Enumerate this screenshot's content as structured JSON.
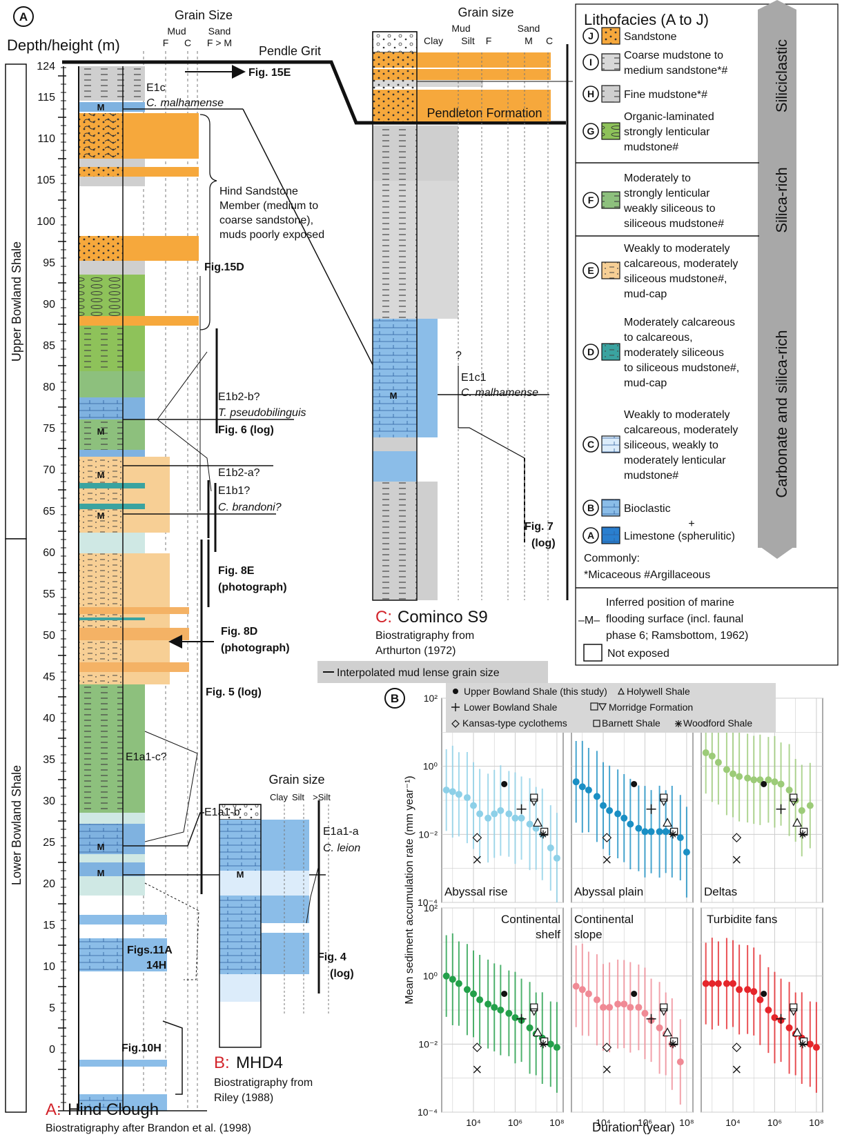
{
  "panel_a": {
    "letter": "A",
    "depth_label": "Depth/height (m)",
    "grain_size_label": "Grain Size",
    "grain_top": [
      "Mud",
      "Sand"
    ],
    "grain_bottom": [
      "F",
      "C",
      "F > M"
    ],
    "depth_ticks": [
      "124",
      "115",
      "110",
      "105",
      "100",
      "95",
      "90",
      "85",
      "80",
      "75",
      "70",
      "65",
      "60",
      "55",
      "50",
      "45",
      "40",
      "35",
      "30",
      "25",
      "20",
      "15",
      "10",
      "5",
      "0"
    ],
    "upper_unit": "Upper Bowland Shale",
    "lower_unit": "Lower Bowland Shale",
    "pendle_grit": "Pendle Grit",
    "fig_15e": "Fig. 15E",
    "e1c": "E1c",
    "c_malhamense": "C. malhamense",
    "hind_sandstone": [
      "Hind Sandstone",
      "Member (medium to",
      "coarse sandstone),",
      "muds poorly exposed"
    ],
    "fig_15d": "Fig.15D",
    "e1b2b": "E1b2-b?",
    "t_pseudo": "T. pseudobilinguis",
    "fig6": "Fig. 6 (log)",
    "e1b2a": "E1b2-a?",
    "e1b1": "E1b1?",
    "c_brandoni": "C. brandoni?",
    "fig8e": [
      "Fig. 8E",
      "(photograph)"
    ],
    "fig8d": [
      "Fig. 8D",
      "(photograph)"
    ],
    "fig5": "Fig. 5 (log)",
    "e1a1c": "E1a1-c?",
    "e1a1b": "E1a1-b",
    "figs11a": [
      "Figs.11A",
      "14H"
    ],
    "fig10h": "Fig.10H",
    "site_letter": "A:",
    "site_name": "Hind Clough",
    "biostrat": "Biostratigraphy after Brandon et al. (1998)",
    "m_mark": "M"
  },
  "panel_b": {
    "grain_size_label": "Grain size",
    "grain_cols": [
      "Clay",
      "Silt",
      ">Silt"
    ],
    "e1a1a": "E1a1-a",
    "c_leion": "C. leion",
    "fig4": [
      "Fig. 4",
      "(log)"
    ],
    "site_letter": "B:",
    "site_name": "MHD4",
    "biostrat": [
      "Biostratigraphy from",
      "Riley (1988)"
    ]
  },
  "panel_c": {
    "grain_size_label": "Grain size",
    "grain_top": [
      "Mud",
      "Sand"
    ],
    "grain_bottom": [
      "Clay",
      "Silt",
      "F",
      "M",
      "C"
    ],
    "pendleton": "Pendleton Formation",
    "e1c1": "E1c1",
    "c_malhamense": "C. malhamense",
    "question": "?",
    "fig7": [
      "Fig. 7",
      "(log)"
    ],
    "site_letter": "C:",
    "site_name": "Cominco S9",
    "biostrat": [
      "Biostratigraphy from",
      "Arthurton (1972)"
    ],
    "interp_note": "Interpolated mud lense grain size"
  },
  "legend": {
    "title": "Lithofacies (A to J)",
    "items": [
      {
        "letter": "J",
        "lines": [
          "Sandstone"
        ]
      },
      {
        "letter": "I",
        "lines": [
          "Coarse mudstone to",
          "medium sandstone*#"
        ]
      },
      {
        "letter": "H",
        "lines": [
          "Fine mudstone*#"
        ]
      },
      {
        "letter": "G",
        "lines": [
          "Organic-laminated",
          "strongly lenticular",
          "mudstone#"
        ]
      },
      {
        "letter": "F",
        "lines": [
          "Moderately to",
          "strongly lenticular",
          "weakly siliceous to",
          "siliceous mudstone#"
        ]
      },
      {
        "letter": "E",
        "lines": [
          "Weakly to moderately",
          "calcareous, moderately",
          "siliceous mudstone#,",
          "mud-cap"
        ]
      },
      {
        "letter": "D",
        "lines": [
          "Moderately calcareous",
          "to calcareous,",
          "moderately siliceous",
          "to siliceous mudstone#,",
          "mud-cap"
        ]
      },
      {
        "letter": "C",
        "lines": [
          "Weakly to moderately",
          "calcareous, moderately",
          "siliceous, weakly to",
          "moderately lenticular",
          "mudstone#"
        ]
      },
      {
        "letter": "B",
        "lines": [
          "Bioclastic"
        ]
      },
      {
        "letter": "A",
        "lines": [
          "Limestone (spherulitic)"
        ]
      }
    ],
    "plus": "+",
    "commonly": "Commonly:",
    "commonly_note": "*Micaceous #Argillaceous",
    "flood_lines": [
      "Inferred position of marine",
      "flooding surface (incl. faunal",
      "phase 6; Ramsbottom, 1962)"
    ],
    "flood_symbol": "–M–",
    "not_exposed": "Not exposed",
    "arrow_labels": [
      "Siliciclastic",
      "Silica-rich",
      "Carbonate and silica-rich"
    ]
  },
  "chart_b": {
    "letter": "B",
    "legend": [
      "Upper Bowland Shale (this study)",
      "Holywell Shale",
      "Lower Bowland Shale",
      "Morridge Formation",
      "Kansas-type cyclothems",
      "Barnett Shale",
      "Woodford Shale"
    ],
    "ylabel": "Mean sediment accumulation rate (mm year⁻¹)",
    "xlabel": "Duration (year)",
    "y_ticks": [
      "10²",
      "10⁰",
      "10⁻²",
      "10⁻⁴"
    ],
    "x_ticks": [
      "10⁴",
      "10⁶",
      "10⁸"
    ]
  },
  "chart_data": {
    "type": "scatter",
    "x_scale": "log",
    "y_scale": "log",
    "xlim": [
      300,
      200000000
    ],
    "ylim": [
      0.0001,
      100
    ],
    "grid": true,
    "ylabel": "Mean sediment accumulation rate (mm year⁻¹)",
    "xlabel": "Duration (year)",
    "reference_points": [
      {
        "name": "Upper Bowland Shale (this study)",
        "x": 300000,
        "y": 0.3
      },
      {
        "name": "Lower Bowland Shale",
        "x": 2000000,
        "y": 0.055
      },
      {
        "name": "Kansas-type cyclothems (diamond)",
        "x": 15000,
        "y": 0.008
      },
      {
        "name": "Kansas-type cyclothems (cross)",
        "x": 15000,
        "y": 0.0018
      },
      {
        "name": "Morridge Formation (boxed cross)",
        "x": 8000000,
        "y": 0.12
      },
      {
        "name": "Morridge Formation (triangle down)",
        "x": 8000000,
        "y": 0.09
      },
      {
        "name": "Holywell Shale",
        "x": 12000000,
        "y": 0.022
      },
      {
        "name": "Barnett Shale",
        "x": 25000000,
        "y": 0.012
      },
      {
        "name": "Woodford Shale",
        "x": 22000000,
        "y": 0.01
      }
    ],
    "panels": [
      {
        "name": "Abyssal rise",
        "color": "#8dd0e8",
        "x": [
          500,
          1000,
          2000,
          5000,
          10000,
          20000,
          50000,
          100000,
          200000,
          500000,
          1000000,
          2000000,
          5000000,
          10000000,
          20000000,
          50000000,
          100000000
        ],
        "y": [
          0.2,
          0.18,
          0.15,
          0.12,
          0.07,
          0.04,
          0.03,
          0.04,
          0.05,
          0.04,
          0.03,
          0.03,
          0.02,
          0.015,
          0.01,
          0.004,
          0.002
        ]
      },
      {
        "name": "Abyssal plain",
        "color": "#1a8fc4",
        "x": [
          500,
          1000,
          2000,
          5000,
          10000,
          20000,
          50000,
          100000,
          200000,
          500000,
          1000000,
          2000000,
          5000000,
          10000000,
          20000000,
          50000000,
          100000000
        ],
        "y": [
          0.35,
          0.25,
          0.2,
          0.13,
          0.07,
          0.05,
          0.04,
          0.03,
          0.02,
          0.015,
          0.012,
          0.012,
          0.012,
          0.012,
          0.012,
          0.008,
          0.003
        ]
      },
      {
        "name": "Deltas",
        "color": "#9ccb78",
        "x": [
          500,
          1000,
          2000,
          5000,
          10000,
          20000,
          50000,
          100000,
          200000,
          500000,
          1000000,
          2000000,
          5000000,
          10000000,
          20000000,
          50000000
        ],
        "y": [
          2.5,
          2.0,
          1.3,
          0.8,
          0.6,
          0.5,
          0.45,
          0.4,
          0.4,
          0.4,
          0.35,
          0.3,
          0.2,
          0.1,
          0.05,
          0.07
        ]
      },
      {
        "name": "Continental shelf",
        "color": "#23a04a",
        "x": [
          500,
          1000,
          2000,
          5000,
          10000,
          20000,
          50000,
          100000,
          200000,
          500000,
          1000000,
          2000000,
          5000000,
          10000000,
          20000000,
          50000000,
          100000000
        ],
        "y": [
          1.0,
          0.8,
          0.6,
          0.4,
          0.3,
          0.2,
          0.15,
          0.12,
          0.1,
          0.08,
          0.06,
          0.05,
          0.03,
          0.02,
          0.015,
          0.01,
          0.008
        ]
      },
      {
        "name": "Continental slope",
        "color": "#f08a95",
        "x": [
          500,
          1000,
          2000,
          5000,
          10000,
          20000,
          50000,
          100000,
          200000,
          500000,
          1000000,
          2000000,
          5000000,
          10000000,
          20000000,
          50000000
        ],
        "y": [
          0.5,
          0.4,
          0.3,
          0.2,
          0.12,
          0.12,
          0.15,
          0.15,
          0.12,
          0.12,
          0.08,
          0.05,
          0.03,
          0.02,
          0.01,
          0.003
        ]
      },
      {
        "name": "Turbidite fans",
        "color": "#e5262b",
        "x": [
          500,
          1000,
          2000,
          5000,
          10000,
          20000,
          50000,
          100000,
          200000,
          500000,
          1000000,
          2000000,
          5000000,
          10000000,
          20000000,
          50000000,
          100000000
        ],
        "y": [
          0.6,
          0.6,
          0.6,
          0.6,
          0.6,
          0.4,
          0.4,
          0.35,
          0.2,
          0.1,
          0.06,
          0.05,
          0.03,
          0.02,
          0.015,
          0.01,
          0.008
        ]
      }
    ]
  }
}
